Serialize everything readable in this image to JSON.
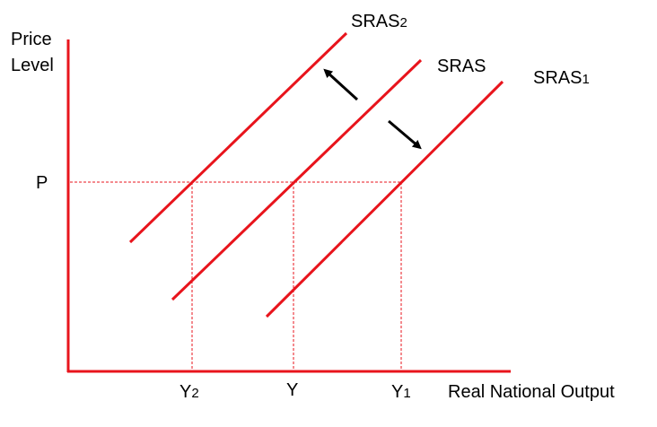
{
  "axes": {
    "y_label_line1": "Price",
    "y_label_line2": "Level",
    "x_label": "Real National Output"
  },
  "price_label": "P",
  "curves": [
    {
      "id": "sras2",
      "label_main": "SRAS",
      "label_sub": "2"
    },
    {
      "id": "sras",
      "label_main": "SRAS",
      "label_sub": ""
    },
    {
      "id": "sras1",
      "label_main": "SRAS",
      "label_sub": "1"
    }
  ],
  "output_ticks": [
    {
      "label_main": "Y",
      "label_sub": "2"
    },
    {
      "label_main": "Y",
      "label_sub": ""
    },
    {
      "label_main": "Y",
      "label_sub": "1"
    }
  ],
  "arrows": [
    {
      "direction": "up-left"
    },
    {
      "direction": "down-right"
    }
  ],
  "colors": {
    "curve": "#e8141c",
    "axis": "#e8141c",
    "guide": "#e8141c",
    "arrow": "#000000",
    "text": "#000000"
  }
}
